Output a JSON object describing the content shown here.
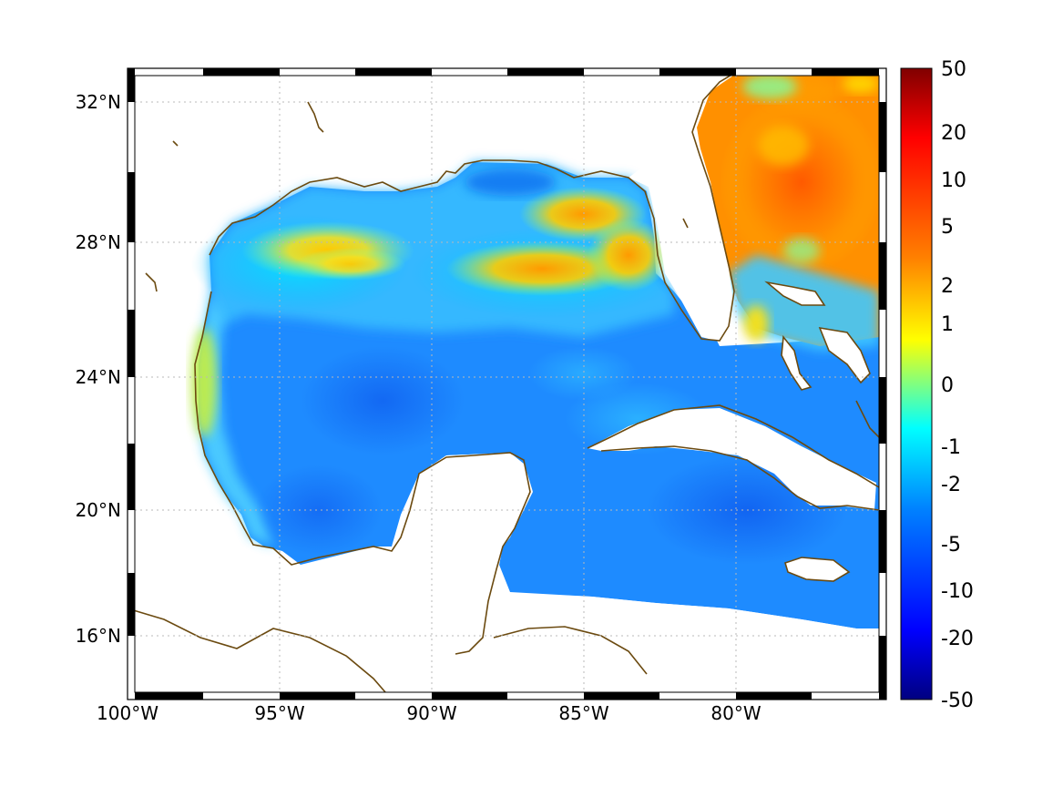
{
  "map": {
    "x_ticks": [
      "100°W",
      "95°W",
      "90°W",
      "85°W",
      "80°W"
    ],
    "y_ticks": [
      "32°N",
      "28°N",
      "24°N",
      "20°N",
      "16°N"
    ],
    "grid": "dotted",
    "coast_color": "#6b4a10",
    "land_color": "#ffffff",
    "frame_style": "alternating black/white border"
  },
  "colorbar": {
    "colormap": "jet",
    "orientation": "vertical",
    "placement": "right",
    "labels": [
      "50",
      "20",
      "10",
      "5",
      "2",
      "1",
      "0",
      "-1",
      "-2",
      "-5",
      "-10",
      "-20",
      "-50"
    ]
  }
}
